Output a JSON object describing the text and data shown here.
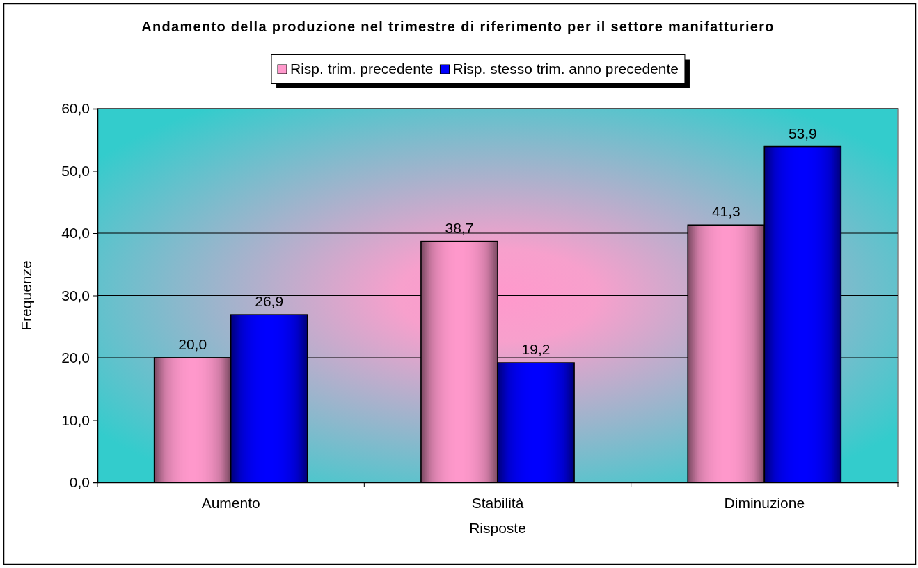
{
  "chart_data": {
    "type": "bar",
    "title": "Andamento della produzione nel trimestre di riferimento per il settore manifatturiero",
    "xlabel": "Risposte",
    "ylabel": "Frequenze",
    "categories": [
      "Aumento",
      "Stabilità",
      "Diminuzione"
    ],
    "series": [
      {
        "name": "Risp. trim. precedente",
        "color": "#ff99cc",
        "values": [
          20.0,
          38.7,
          41.3
        ],
        "value_labels": [
          "20,0",
          "38,7",
          "41,3"
        ]
      },
      {
        "name": "Risp. stesso trim. anno precedente",
        "color": "#0000ff",
        "values": [
          26.9,
          19.2,
          53.9
        ],
        "value_labels": [
          "26,9",
          "19,2",
          "53,9"
        ]
      }
    ],
    "ylim": [
      0,
      60
    ],
    "yticks": [
      {
        "value": 0,
        "label": "0,0"
      },
      {
        "value": 10,
        "label": "10,0"
      },
      {
        "value": 20,
        "label": "20,0"
      },
      {
        "value": 30,
        "label": "30,0"
      },
      {
        "value": 40,
        "label": "40,0"
      },
      {
        "value": 50,
        "label": "50,0"
      },
      {
        "value": 60,
        "label": "60,0"
      }
    ],
    "grid": "y",
    "legend": "top"
  }
}
